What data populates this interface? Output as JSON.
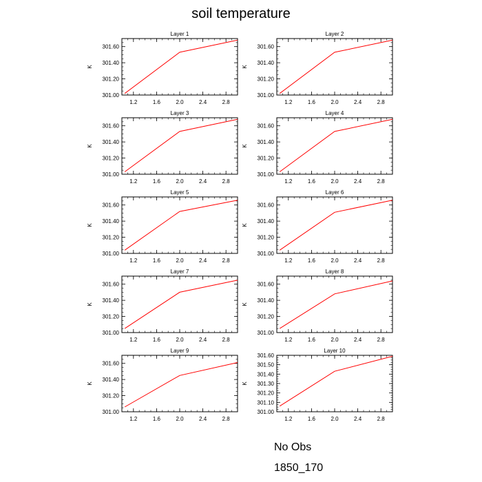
{
  "title": "soil temperature",
  "legend": [
    {
      "label": "No Obs",
      "color": "#3a3ad0",
      "style": "dashed"
    },
    {
      "label": "1850_170",
      "color": "#ff0000",
      "style": "solid"
    }
  ],
  "chart_data": [
    {
      "type": "line",
      "title": "Layer 1",
      "ylabel": "K",
      "xlim": [
        1,
        3
      ],
      "ylim": [
        301.0,
        301.7
      ],
      "xticks": [
        "1.2",
        "1.6",
        "2.0",
        "2.4",
        "2.8"
      ],
      "yticks": [
        "301.00",
        "301.20",
        "301.40",
        "301.60"
      ],
      "series": [
        {
          "color": "#ff0000",
          "x": [
            1.05,
            2.0,
            3.0
          ],
          "y": [
            301.02,
            301.53,
            301.68
          ]
        }
      ]
    },
    {
      "type": "line",
      "title": "Layer 2",
      "ylabel": "K",
      "xlim": [
        1,
        3
      ],
      "ylim": [
        301.0,
        301.7
      ],
      "xticks": [
        "1.2",
        "1.6",
        "2.0",
        "2.4",
        "2.8"
      ],
      "yticks": [
        "301.00",
        "301.20",
        "301.40",
        "301.60"
      ],
      "series": [
        {
          "color": "#ff0000",
          "x": [
            1.05,
            2.0,
            3.0
          ],
          "y": [
            301.02,
            301.53,
            301.68
          ]
        }
      ]
    },
    {
      "type": "line",
      "title": "Layer 3",
      "ylabel": "K",
      "xlim": [
        1,
        3
      ],
      "ylim": [
        301.0,
        301.7
      ],
      "xticks": [
        "1.2",
        "1.6",
        "2.0",
        "2.4",
        "2.8"
      ],
      "yticks": [
        "301.00",
        "301.20",
        "301.40",
        "301.60"
      ],
      "series": [
        {
          "color": "#ff0000",
          "x": [
            1.05,
            2.0,
            3.0
          ],
          "y": [
            301.03,
            301.53,
            301.68
          ]
        }
      ]
    },
    {
      "type": "line",
      "title": "Layer 4",
      "ylabel": "K",
      "xlim": [
        1,
        3
      ],
      "ylim": [
        301.0,
        301.7
      ],
      "xticks": [
        "1.2",
        "1.6",
        "2.0",
        "2.4",
        "2.8"
      ],
      "yticks": [
        "301.00",
        "301.20",
        "301.40",
        "301.60"
      ],
      "series": [
        {
          "color": "#ff0000",
          "x": [
            1.05,
            2.0,
            3.0
          ],
          "y": [
            301.03,
            301.53,
            301.68
          ]
        }
      ]
    },
    {
      "type": "line",
      "title": "Layer 5",
      "ylabel": "K",
      "xlim": [
        1,
        3
      ],
      "ylim": [
        301.0,
        301.7
      ],
      "xticks": [
        "1.2",
        "1.6",
        "2.0",
        "2.4",
        "2.8"
      ],
      "yticks": [
        "301.00",
        "301.20",
        "301.40",
        "301.60"
      ],
      "series": [
        {
          "color": "#ff0000",
          "x": [
            1.05,
            2.0,
            3.0
          ],
          "y": [
            301.04,
            301.52,
            301.66
          ]
        }
      ]
    },
    {
      "type": "line",
      "title": "Layer 6",
      "ylabel": "K",
      "xlim": [
        1,
        3
      ],
      "ylim": [
        301.0,
        301.7
      ],
      "xticks": [
        "1.2",
        "1.6",
        "2.0",
        "2.4",
        "2.8"
      ],
      "yticks": [
        "301.00",
        "301.20",
        "301.40",
        "301.60"
      ],
      "series": [
        {
          "color": "#ff0000",
          "x": [
            1.05,
            2.0,
            3.0
          ],
          "y": [
            301.04,
            301.51,
            301.66
          ]
        }
      ]
    },
    {
      "type": "line",
      "title": "Layer 7",
      "ylabel": "K",
      "xlim": [
        1,
        3
      ],
      "ylim": [
        301.0,
        301.7
      ],
      "xticks": [
        "1.2",
        "1.6",
        "2.0",
        "2.4",
        "2.8"
      ],
      "yticks": [
        "301.00",
        "301.20",
        "301.40",
        "301.60"
      ],
      "series": [
        {
          "color": "#ff0000",
          "x": [
            1.05,
            2.0,
            3.0
          ],
          "y": [
            301.05,
            301.5,
            301.65
          ]
        }
      ]
    },
    {
      "type": "line",
      "title": "Layer 8",
      "ylabel": "K",
      "xlim": [
        1,
        3
      ],
      "ylim": [
        301.0,
        301.7
      ],
      "xticks": [
        "1.2",
        "1.6",
        "2.0",
        "2.4",
        "2.8"
      ],
      "yticks": [
        "301.00",
        "301.20",
        "301.40",
        "301.60"
      ],
      "series": [
        {
          "color": "#ff0000",
          "x": [
            1.05,
            2.0,
            3.0
          ],
          "y": [
            301.05,
            301.48,
            301.64
          ]
        }
      ]
    },
    {
      "type": "line",
      "title": "Layer 9",
      "ylabel": "K",
      "xlim": [
        1,
        3
      ],
      "ylim": [
        301.0,
        301.7
      ],
      "xticks": [
        "1.2",
        "1.6",
        "2.0",
        "2.4",
        "2.8"
      ],
      "yticks": [
        "301.00",
        "301.20",
        "301.40",
        "301.60"
      ],
      "series": [
        {
          "color": "#ff0000",
          "x": [
            1.05,
            2.0,
            3.0
          ],
          "y": [
            301.06,
            301.45,
            301.61
          ]
        }
      ]
    },
    {
      "type": "line",
      "title": "Layer 10",
      "ylabel": "K",
      "xlim": [
        1,
        3
      ],
      "ylim": [
        301.0,
        301.6
      ],
      "xticks": [
        "1.2",
        "1.6",
        "2.0",
        "2.4",
        "2.8"
      ],
      "yticks": [
        "301.00",
        "301.10",
        "301.20",
        "301.30",
        "301.40",
        "301.50",
        "301.60"
      ],
      "series": [
        {
          "color": "#ff0000",
          "x": [
            1.05,
            2.0,
            3.0
          ],
          "y": [
            301.06,
            301.43,
            301.59
          ]
        }
      ]
    }
  ]
}
